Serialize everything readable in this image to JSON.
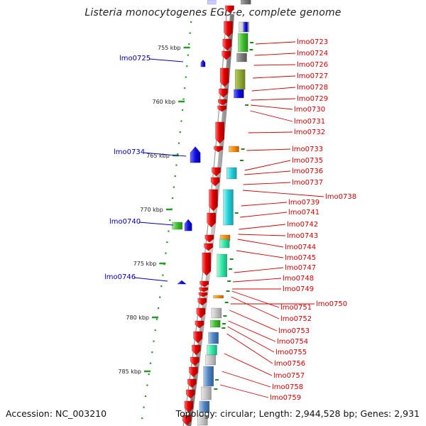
{
  "title": "Listeria monocytogenes EGD-e, complete genome",
  "footer": {
    "accession": "Accession: NC_003210",
    "topology": "Topology: circular; Length: 2,944,528 bp; Genes: 2,931"
  },
  "ruler_ticks": [
    "755 kbp",
    "760 kbp",
    "765 kbp",
    "770 kbp",
    "775 kbp",
    "780 kbp",
    "785 kbp"
  ],
  "left_genes": [
    "lmo0725",
    "lmo0734",
    "lmo0740",
    "lmo0746"
  ],
  "right_genes": [
    "lmo0723",
    "lmo0724",
    "lmo0726",
    "lmo0727",
    "lmo0728",
    "lmo0729",
    "lmo0730",
    "lmo0731",
    "lmo0732",
    "lmo0733",
    "lmo0735",
    "lmo0736",
    "lmo0737",
    "lmo0738",
    "lmo0739",
    "lmo0741",
    "lmo0742",
    "lmo0743",
    "lmo0744",
    "lmo0745",
    "lmo0747",
    "lmo0748",
    "lmo0749",
    "lmo0750",
    "lmo0751",
    "lmo0752",
    "lmo0753",
    "lmo0754",
    "lmo0755",
    "lmo0756",
    "lmo0757",
    "lmo0758",
    "lmo0759"
  ],
  "colors": {
    "forward_gene": "#e60000",
    "reverse_gene": "#1010e0",
    "right_label": "#d00000",
    "left_label": "#0000b0",
    "backbone": "#8a8a8a"
  }
}
